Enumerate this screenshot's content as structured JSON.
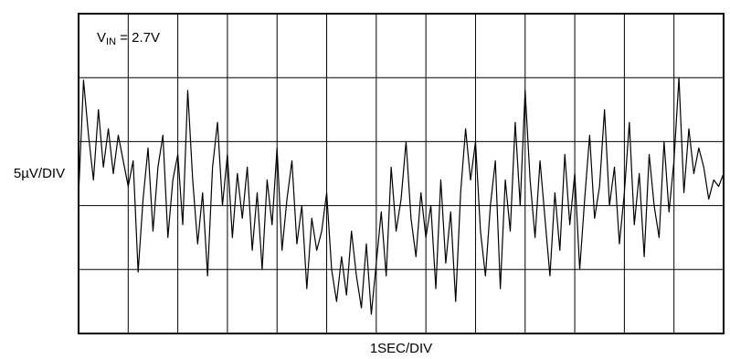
{
  "chart_data": {
    "type": "line",
    "annotation": {
      "main": "V",
      "sub": "IN",
      "rest": " = 2.7V"
    },
    "ylabel": "5µV/DIV",
    "xlabel": "1SEC/DIV",
    "color": "#000000",
    "xlim": [
      0,
      13
    ],
    "ylim": [
      0,
      25
    ],
    "xgrid": [
      1,
      2,
      3,
      4,
      5,
      6,
      7,
      8,
      9,
      10,
      11,
      12
    ],
    "ygrid": [
      5,
      10,
      15,
      20
    ],
    "x": [
      0,
      0.1,
      0.2,
      0.3,
      0.4,
      0.5,
      0.6,
      0.7,
      0.8,
      0.9,
      1,
      1.1,
      1.2,
      1.3,
      1.4,
      1.5,
      1.6,
      1.7,
      1.8,
      1.9,
      2,
      2.1,
      2.2,
      2.3,
      2.4,
      2.5,
      2.6,
      2.7,
      2.8,
      2.9,
      3,
      3.1,
      3.2,
      3.3,
      3.4,
      3.5,
      3.6,
      3.7,
      3.8,
      3.9,
      4,
      4.1,
      4.2,
      4.3,
      4.4,
      4.5,
      4.6,
      4.7,
      4.8,
      4.9,
      5,
      5.1,
      5.2,
      5.3,
      5.4,
      5.5,
      5.6,
      5.7,
      5.8,
      5.9,
      6,
      6.1,
      6.2,
      6.3,
      6.4,
      6.5,
      6.6,
      6.7,
      6.8,
      6.9,
      7,
      7.1,
      7.2,
      7.3,
      7.4,
      7.5,
      7.6,
      7.7,
      7.8,
      7.9,
      8,
      8.1,
      8.2,
      8.3,
      8.4,
      8.5,
      8.6,
      8.7,
      8.8,
      8.9,
      9,
      9.1,
      9.2,
      9.3,
      9.4,
      9.5,
      9.6,
      9.7,
      9.8,
      9.9,
      10,
      10.1,
      10.2,
      10.3,
      10.4,
      10.5,
      10.6,
      10.7,
      10.8,
      10.9,
      11,
      11.1,
      11.2,
      11.3,
      11.4,
      11.5,
      11.6,
      11.7,
      11.8,
      11.9,
      12,
      12.1,
      12.2,
      12.3,
      12.4,
      12.5,
      12.6,
      12.7,
      12.8,
      12.9,
      13
    ],
    "values": [
      10.8,
      19.8,
      15.5,
      12.0,
      17.5,
      13.0,
      16.0,
      12.5,
      15.5,
      13.5,
      11.5,
      13.5,
      4.8,
      10.5,
      14.5,
      8.0,
      13.0,
      15.5,
      7.5,
      12.0,
      14.0,
      8.5,
      19.0,
      12.0,
      7.0,
      11.0,
      4.5,
      13.0,
      16.5,
      10.0,
      14.0,
      7.5,
      12.5,
      9.0,
      13.0,
      6.5,
      11.0,
      5.0,
      12.0,
      8.5,
      14.5,
      6.5,
      10.5,
      13.5,
      7.0,
      10.0,
      3.5,
      9.0,
      6.5,
      8.0,
      11.0,
      5.0,
      2.5,
      6.0,
      3.0,
      8.0,
      4.5,
      2.0,
      7.0,
      1.5,
      5.5,
      9.5,
      4.5,
      13.0,
      8.0,
      10.5,
      15.0,
      9.0,
      6.0,
      11.0,
      7.5,
      10.0,
      3.5,
      12.0,
      5.5,
      9.5,
      2.5,
      11.0,
      16.0,
      12.0,
      15.0,
      8.0,
      4.5,
      10.0,
      13.5,
      3.5,
      12.0,
      8.0,
      16.5,
      10.0,
      19.0,
      12.0,
      7.5,
      13.5,
      9.0,
      4.5,
      11.0,
      6.5,
      14.0,
      8.5,
      12.5,
      5.0,
      10.5,
      15.5,
      9.0,
      11.5,
      17.5,
      10.0,
      13.0,
      7.0,
      11.0,
      16.5,
      8.5,
      12.5,
      6.0,
      14.0,
      10.0,
      7.5,
      15.0,
      9.5,
      13.5,
      20.0,
      11.0,
      16.0,
      12.5,
      14.5,
      13.0,
      10.5,
      12.0,
      11.5,
      12.5
    ]
  }
}
